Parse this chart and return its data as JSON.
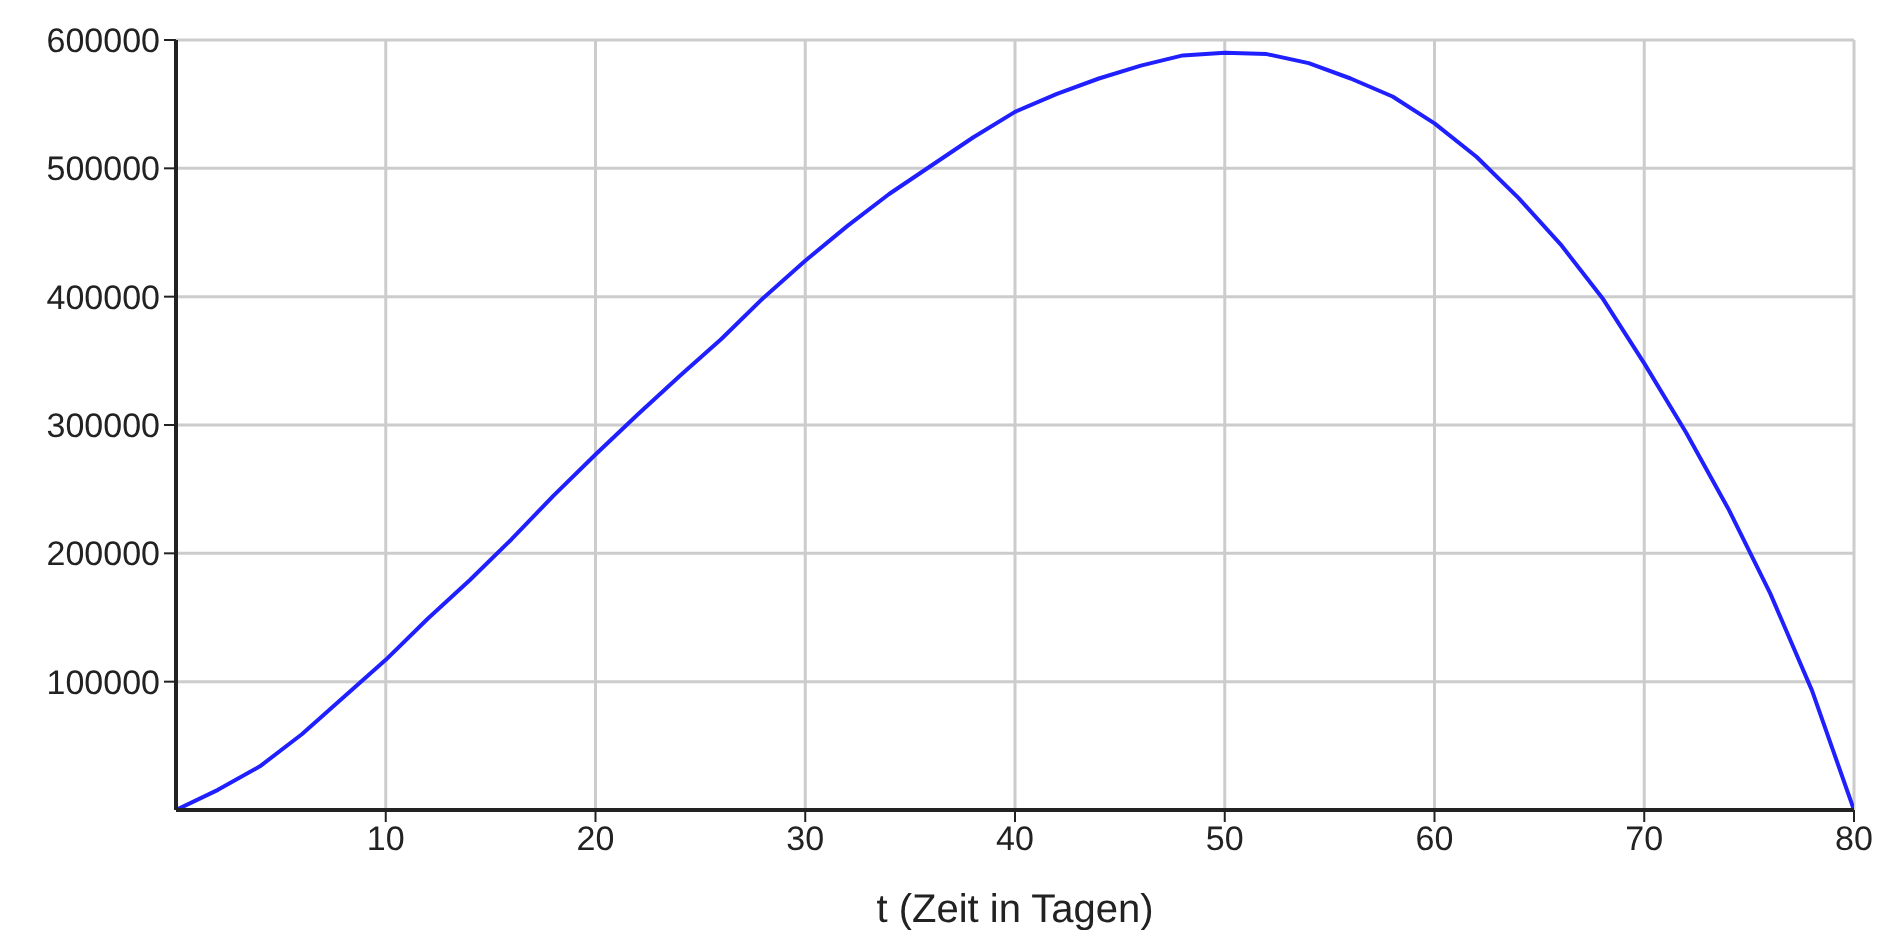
{
  "chart_data": {
    "type": "line",
    "xlabel": "t (Zeit in Tagen)",
    "x": [
      0,
      2,
      4,
      6,
      8,
      10,
      12,
      14,
      16,
      18,
      20,
      22,
      24,
      26,
      28,
      30,
      32,
      34,
      36,
      38,
      40,
      42,
      44,
      46,
      48,
      50,
      52,
      54,
      56,
      58,
      60,
      62,
      64,
      66,
      68,
      70,
      72,
      74,
      76,
      78,
      80
    ],
    "series": [
      {
        "color": "#1f1fff",
        "values": [
          0,
          15700,
          34000,
          59000,
          88000,
          117000,
          149000,
          179000,
          211000,
          245000,
          277000,
          308000,
          338000,
          367000,
          399000,
          428000,
          455000,
          480000,
          502000,
          524000,
          544000,
          558000,
          570000,
          580000,
          588000,
          590000,
          589000,
          582000,
          570000,
          556000,
          535000,
          509000,
          477000,
          441000,
          399000,
          348000,
          294000,
          235000,
          169000,
          93000,
          0
        ]
      }
    ],
    "xlim": [
      0,
      80
    ],
    "xticks": [
      10,
      20,
      30,
      40,
      50,
      60,
      70,
      80
    ],
    "ylim": [
      0,
      600000
    ],
    "yticks": [
      100000,
      200000,
      300000,
      400000,
      500000,
      600000
    ],
    "grid": true,
    "marker": "none",
    "line_style": "solid"
  }
}
